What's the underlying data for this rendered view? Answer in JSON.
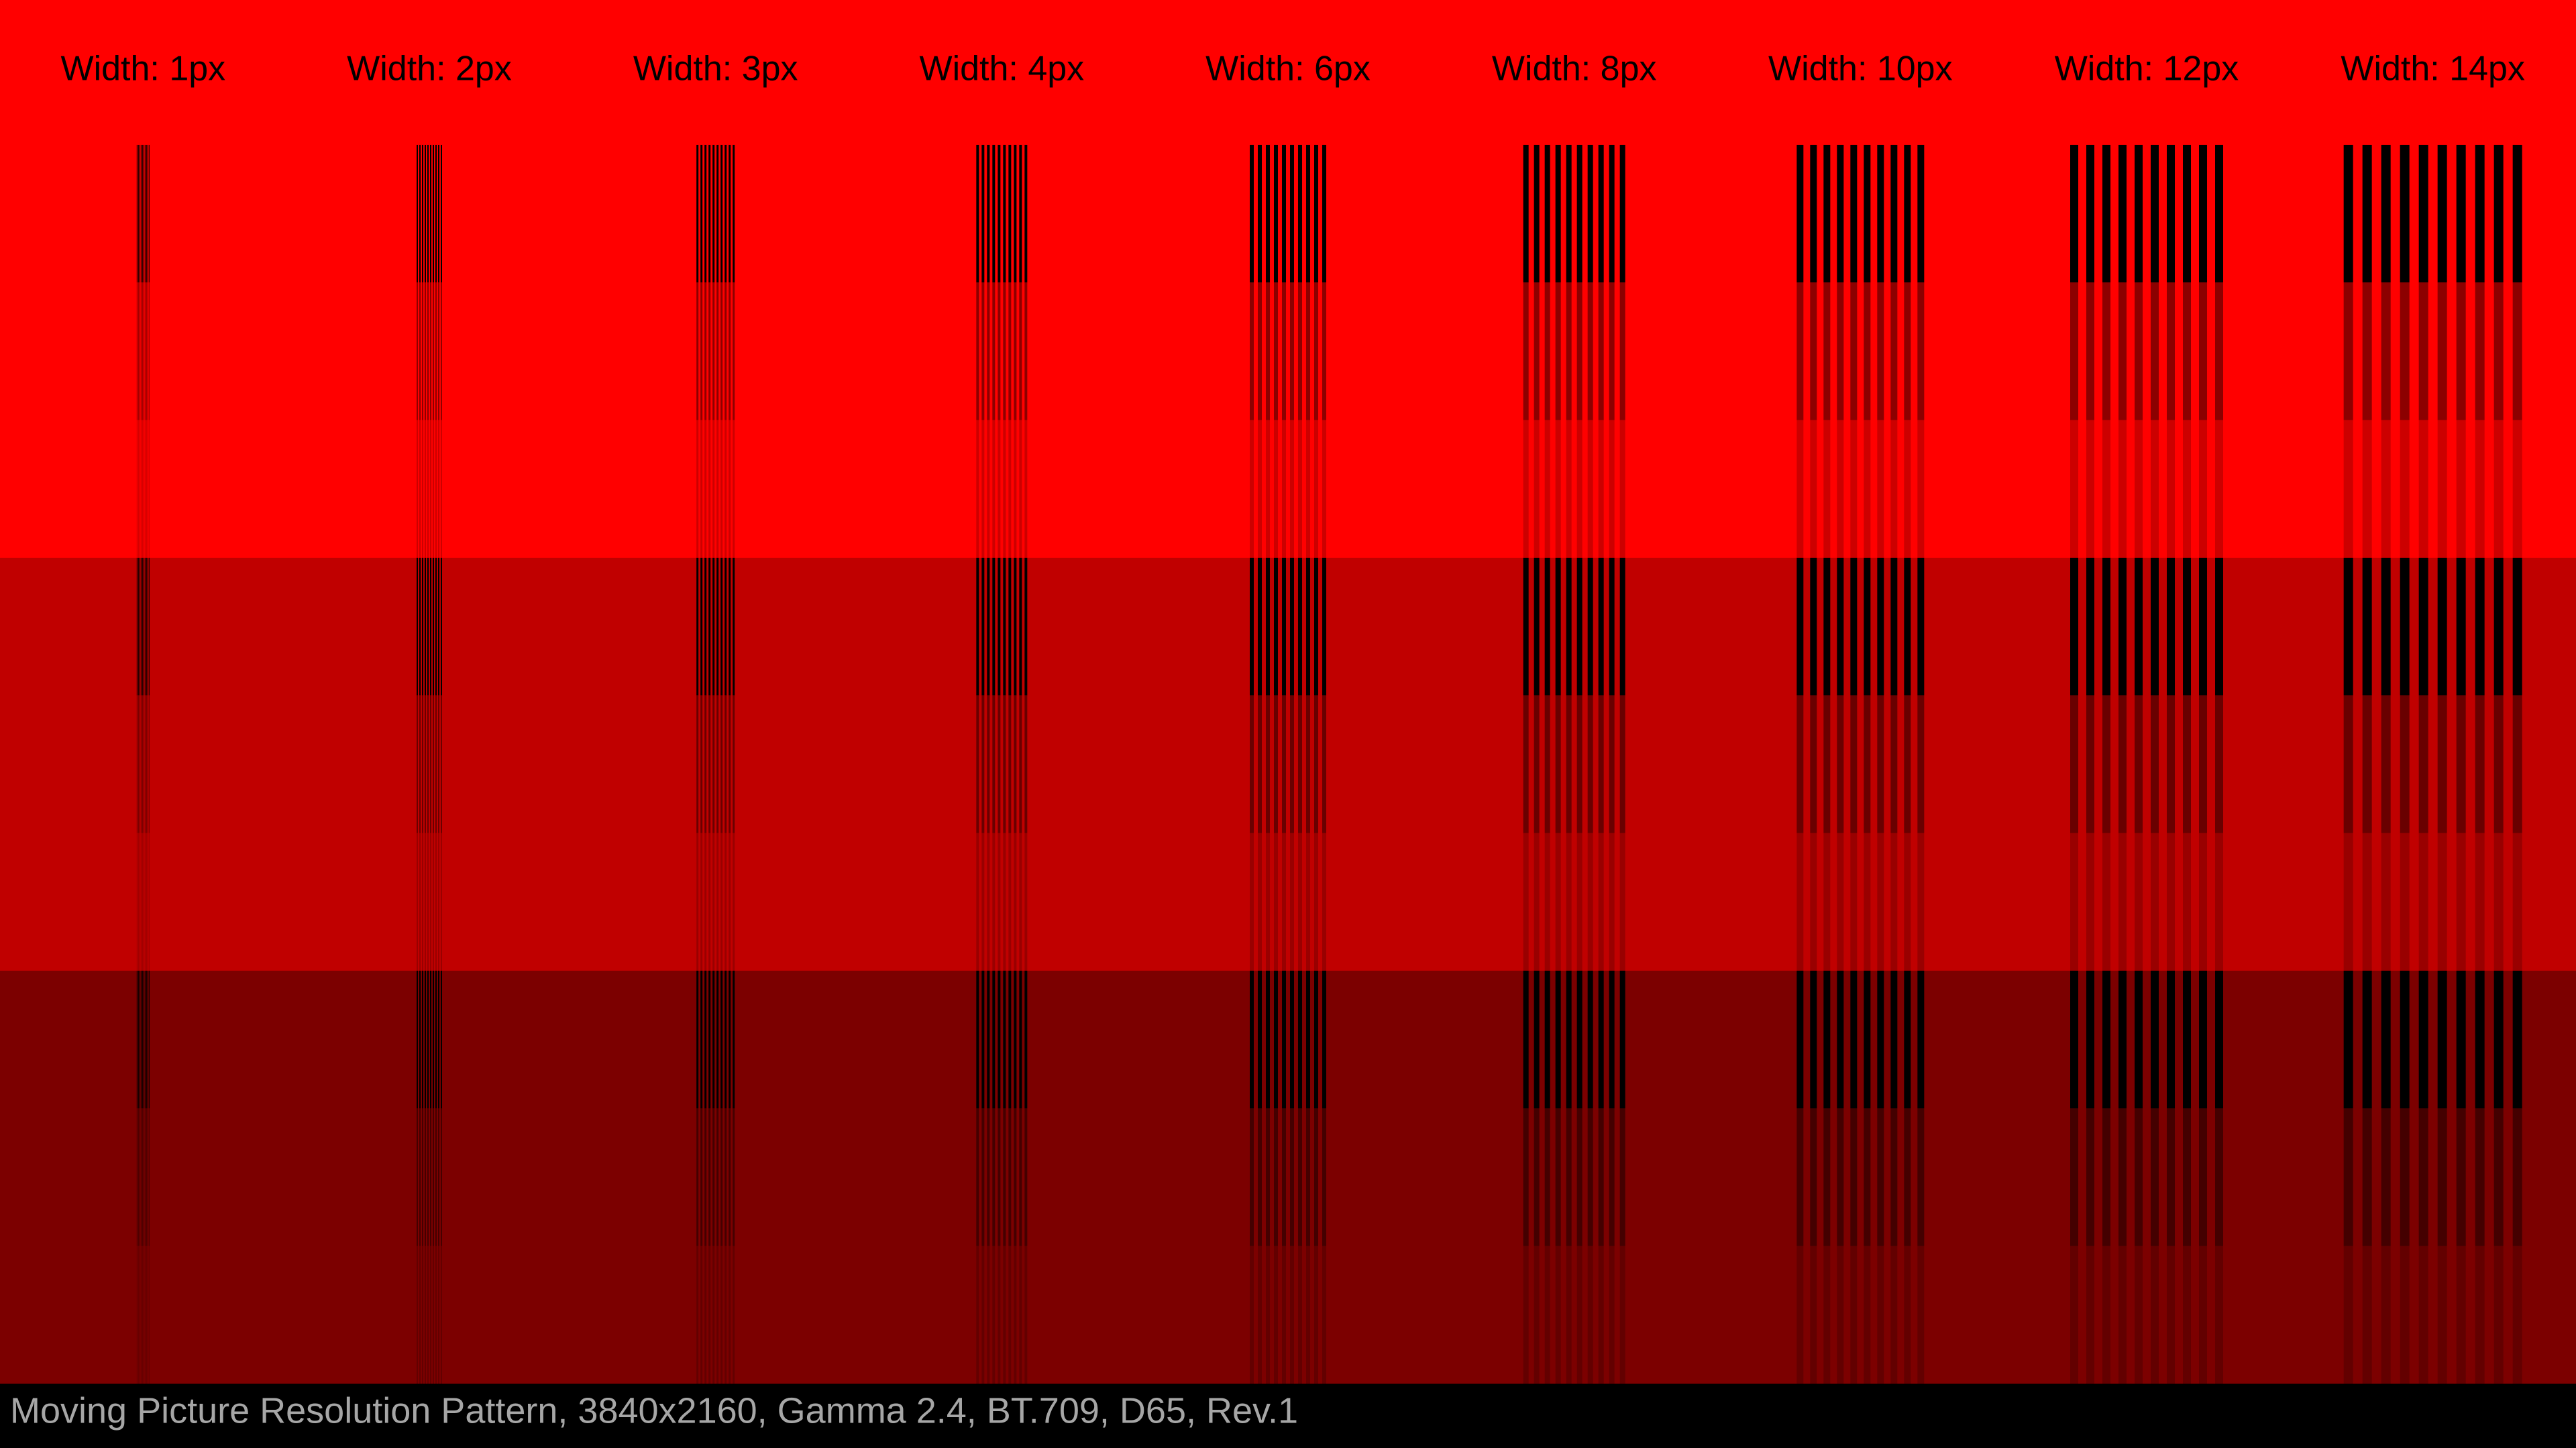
{
  "columns": [
    {
      "label": "Width: 1px",
      "width": 1
    },
    {
      "label": "Width: 2px",
      "width": 2
    },
    {
      "label": "Width: 3px",
      "width": 3
    },
    {
      "label": "Width: 4px",
      "width": 4
    },
    {
      "label": "Width: 6px",
      "width": 6
    },
    {
      "label": "Width: 8px",
      "width": 8
    },
    {
      "label": "Width: 10px",
      "width": 10
    },
    {
      "label": "Width: 12px",
      "width": 12
    },
    {
      "label": "Width: 14px",
      "width": 14
    }
  ],
  "footer": "Moving Picture Resolution Pattern, 3840x2160, Gamma 2.4, BT.709, D65, Rev.1"
}
